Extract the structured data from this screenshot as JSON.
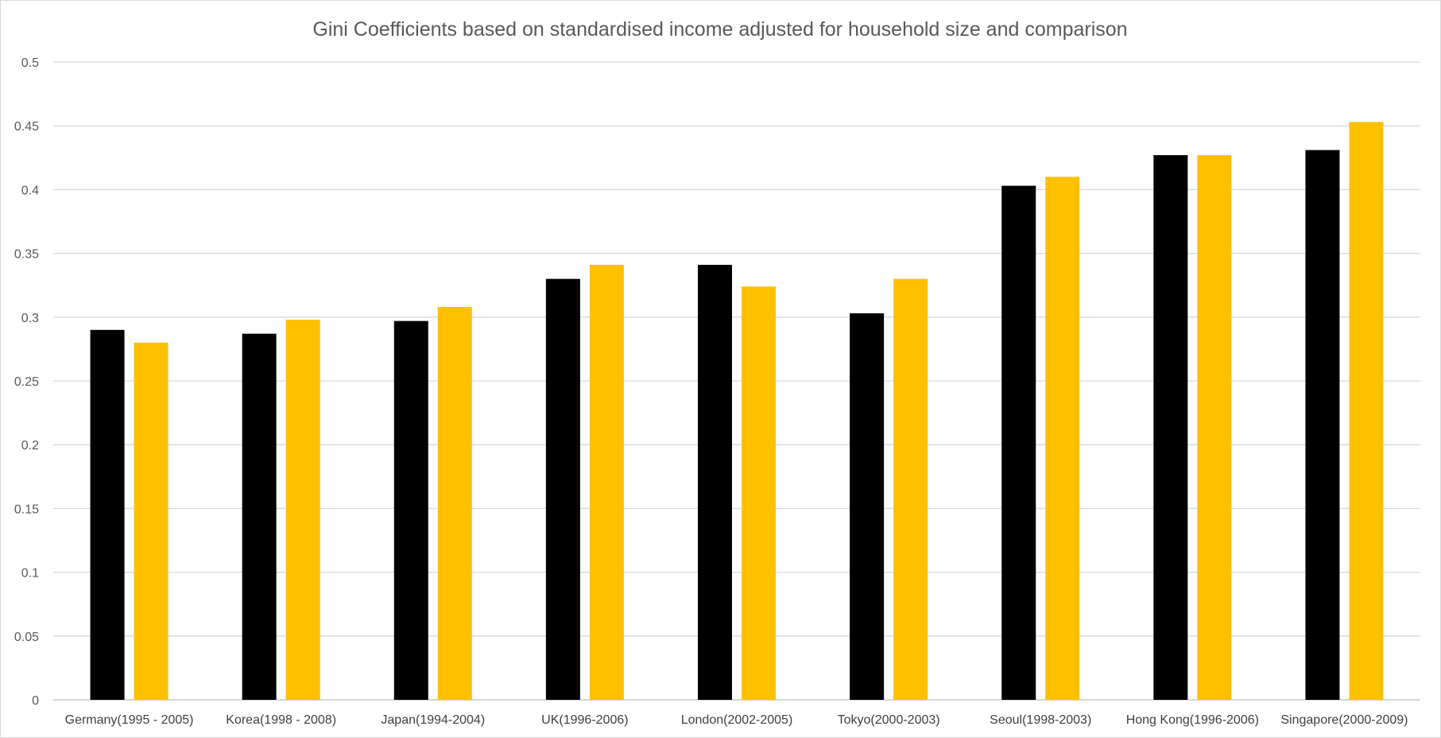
{
  "chart_data": {
    "type": "bar",
    "title": "Gini Coefficients based on standardised income adjusted for household size and comparison",
    "xlabel": "",
    "ylabel": "",
    "ylim": [
      0,
      0.5
    ],
    "y_ticks": [
      "0",
      "0.05",
      "0.1",
      "0.15",
      "0.2",
      "0.25",
      "0.3",
      "0.35",
      "0.4",
      "0.45",
      "0.5"
    ],
    "y_tick_values": [
      0,
      0.05,
      0.1,
      0.15,
      0.2,
      0.25,
      0.3,
      0.35,
      0.4,
      0.45,
      0.5
    ],
    "grid": true,
    "legend": "none",
    "categories": [
      "Germany(1995 - 2005)",
      "Korea(1998 - 2008)",
      "Japan(1994-2004)",
      "UK(1996-2006)",
      "London(2002-2005)",
      "Tokyo(2000-2003)",
      "Seoul(1998-2003)",
      "Hong Kong(1996-2006)",
      "Singapore(2000-2009)"
    ],
    "series": [
      {
        "color": "#000000",
        "values": [
          0.29,
          0.287,
          0.297,
          0.33,
          0.341,
          0.303,
          0.403,
          0.427,
          0.431
        ]
      },
      {
        "color": "#FFC000",
        "values": [
          0.28,
          0.298,
          0.308,
          0.341,
          0.324,
          0.33,
          0.41,
          0.427,
          0.453
        ]
      }
    ]
  }
}
